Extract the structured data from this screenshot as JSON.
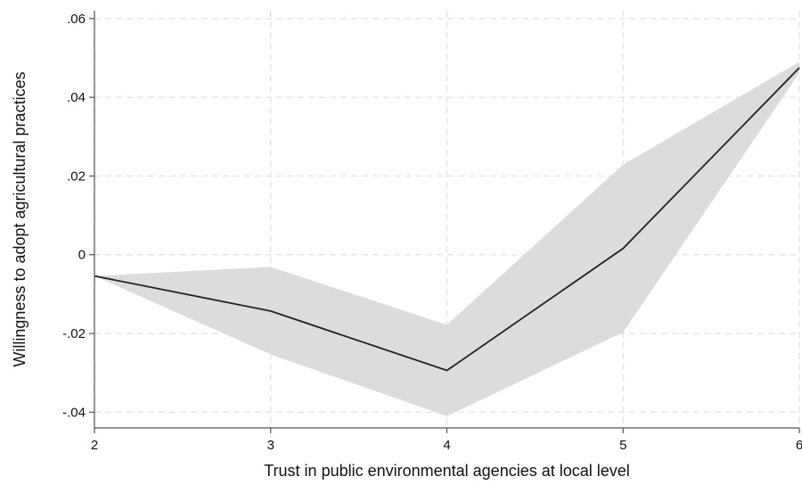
{
  "chart_data": {
    "type": "line",
    "title": "",
    "xlabel": "Trust in public environmental agencies at local level",
    "ylabel": "Willingness to adopt agricultural practices",
    "x": [
      2,
      3,
      4,
      5,
      6
    ],
    "series": [
      {
        "values": [
          -0.0054,
          -0.0143,
          -0.0294,
          0.0016,
          0.0475
        ]
      }
    ],
    "confidence_band": {
      "lower": [
        -0.0054,
        -0.0253,
        -0.041,
        -0.0197,
        0.0462
      ],
      "upper": [
        -0.0054,
        -0.0031,
        -0.0178,
        0.0229,
        0.049
      ]
    },
    "xlim": [
      2,
      6
    ],
    "ylim": [
      -0.044,
      0.062
    ],
    "x_ticks": [
      2,
      3,
      4,
      5,
      6
    ],
    "x_tick_labels": [
      "2",
      "3",
      "4",
      "5",
      "6"
    ],
    "y_ticks": [
      -0.04,
      -0.02,
      0,
      0.02,
      0.04,
      0.06
    ],
    "y_tick_labels": [
      "-.04",
      "-.02",
      "0",
      ".02",
      ".04",
      ".06"
    ],
    "grid": true,
    "colors": {
      "line": "#222222",
      "band": "#dcdcdc",
      "grid": "#e6e6e6",
      "axis": "#555555"
    }
  }
}
